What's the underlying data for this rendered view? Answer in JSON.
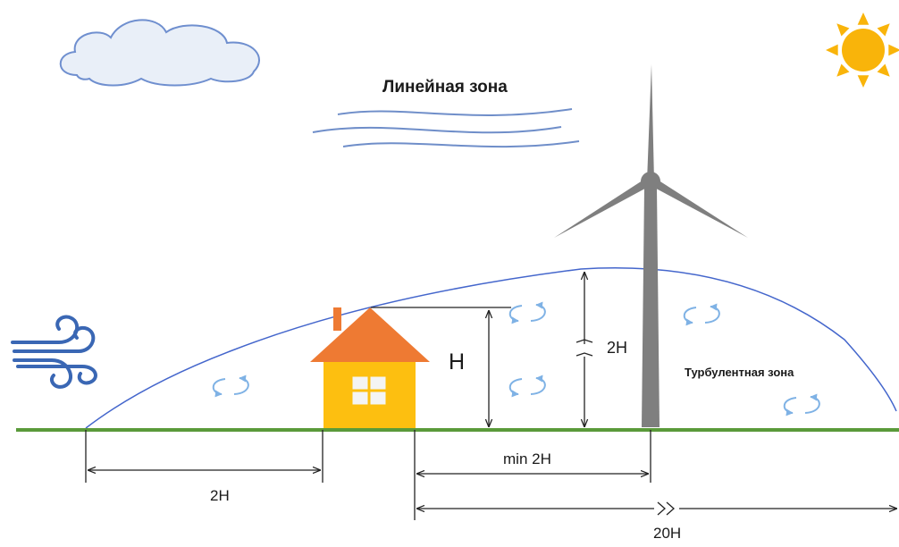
{
  "labels": {
    "linear_zone": "Линейная зона",
    "turbulent_zone": "Турбулентная зона",
    "house_height": "H",
    "turbulence_height": "2H",
    "upwind_distance": "2H",
    "min_distance": "min 2H",
    "downwind_distance": "20H"
  },
  "colors": {
    "ground": "#5a9a3a",
    "boundary_curve": "#4466cc",
    "house_roof": "#ee7a33",
    "house_wall": "#fdbf10",
    "house_window": "#f4f4f4",
    "turbine": "#7f7f7f",
    "sun": "#f9b40a",
    "cloud_fill": "#e9eff8",
    "cloud_stroke": "#6f8fcf",
    "wind_lines": "#6f8ec9",
    "wind_icon": "#3a67b4",
    "eddy": "#7fb2e5",
    "dimension_lines": "#222222"
  },
  "icons": {
    "sun": "sun-icon",
    "cloud": "cloud-icon",
    "wind": "wind-icon",
    "house": "house-icon",
    "turbine": "wind-turbine-icon",
    "eddy": "eddy-icon"
  }
}
